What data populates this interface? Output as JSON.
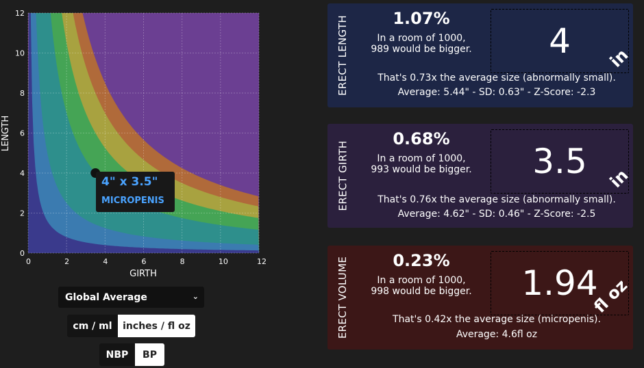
{
  "chart_data": {
    "type": "heatmap",
    "xlabel": "GIRTH",
    "ylabel": "LENGTH",
    "xlim": [
      0,
      12
    ],
    "ylim": [
      0,
      12
    ],
    "x_ticks": [
      0,
      2,
      4,
      6,
      8,
      10,
      12
    ],
    "y_ticks": [
      0,
      2,
      4,
      6,
      8,
      10,
      12
    ],
    "grid": true,
    "bands": [
      {
        "color": "#3a3a8c",
        "k": 0
      },
      {
        "color": "#3b7bb0",
        "k": 5
      },
      {
        "color": "#2e8f8c",
        "k": 14
      },
      {
        "color": "#45a455",
        "k": 21
      },
      {
        "color": "#a8a240",
        "k": 28
      },
      {
        "color": "#b06a3a",
        "k": 34
      },
      {
        "color": "#6b3f92",
        "k": 40
      }
    ],
    "marker": {
      "girth": 3.5,
      "length": 4
    },
    "tooltip": {
      "dims": "4\" x 3.5\"",
      "classification": "MICROPENIS"
    }
  },
  "controls": {
    "dataset": "Global Average",
    "units": [
      "cm / ml",
      "inches / fl oz"
    ],
    "state": [
      "NBP",
      "BP"
    ]
  },
  "cards": {
    "length": {
      "title": "ERECT LENGTH",
      "percent": "1.07%",
      "room1": "In a room of 1000,",
      "room2": "989 would be bigger.",
      "value": "4",
      "unit": "in",
      "comparison": "That's 0.73x the average size (abnormally small).",
      "stats": "Average: 5.44\" - SD: 0.63\" - Z-Score: -2.3"
    },
    "girth": {
      "title": "ERECT GIRTH",
      "percent": "0.68%",
      "room1": "In a room of 1000,",
      "room2": "993 would be bigger.",
      "value": "3.5",
      "unit": "in",
      "comparison": "That's 0.76x the average size (abnormally small).",
      "stats": "Average: 4.62\" - SD: 0.46\" - Z-Score: -2.5"
    },
    "volume": {
      "title": "ERECT VOLUME",
      "percent": "0.23%",
      "room1": "In a room of 1000,",
      "room2": "998 would be bigger.",
      "value": "1.94",
      "unit": "fl oz",
      "comparison": "That's 0.42x the average size (micropenis).",
      "stats": "Average: 4.6fl oz"
    }
  }
}
